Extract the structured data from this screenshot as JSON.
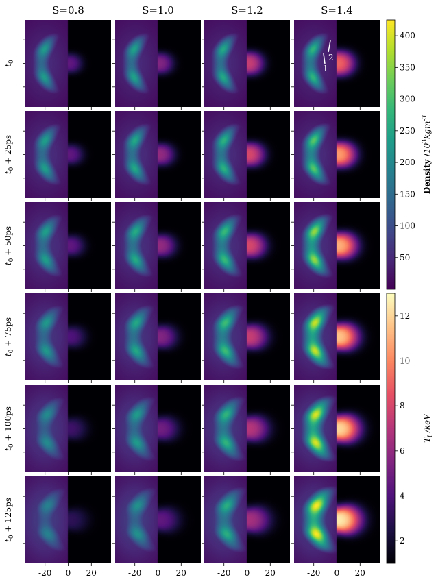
{
  "chart_data": {
    "type": "heatmap",
    "title": "",
    "columns": [
      "S=0.8",
      "S=1.0",
      "S=1.2",
      "S=1.4"
    ],
    "rows": [
      "t_0",
      "t_0+25ps",
      "t_0+50ps",
      "t_0+75ps",
      "t_0+100ps",
      "t_0+125ps"
    ],
    "row_labels": [
      {
        "base": "t",
        "sub": "0",
        "suffix": ""
      },
      {
        "base": "t",
        "sub": "0",
        "suffix": " + 25ps"
      },
      {
        "base": "t",
        "sub": "0",
        "suffix": " + 50ps"
      },
      {
        "base": "t",
        "sub": "0",
        "suffix": " + 75ps"
      },
      {
        "base": "t",
        "sub": "0",
        "suffix": " + 100ps"
      },
      {
        "base": "t",
        "sub": "0",
        "suffix": " + 125ps"
      }
    ],
    "x_ticks": [
      "-20",
      "0",
      "20"
    ],
    "x_tick_values": [
      -20,
      0,
      20
    ],
    "x_range": [
      -37,
      37
    ],
    "y_tick_values": [
      -20,
      0,
      20
    ],
    "y_range": [
      -37,
      37
    ],
    "left_half_field": "Density",
    "right_half_field": "T_i",
    "annotations": [
      {
        "panel": "S=1.4 / t_0",
        "label": "1"
      },
      {
        "panel": "S=1.4 / t_0",
        "label": "2"
      }
    ],
    "colorbars": [
      {
        "name": "density",
        "colormap": "viridis",
        "label_parts": [
          "Density /",
          "10",
          "3",
          "kgm",
          "-3"
        ],
        "ticks": [
          "50",
          "100",
          "150",
          "200",
          "250",
          "300",
          "350",
          "400"
        ],
        "tick_values": [
          50,
          100,
          150,
          200,
          250,
          300,
          350,
          400
        ],
        "range": [
          0,
          425
        ]
      },
      {
        "name": "ion-temperature",
        "colormap": "magma",
        "label_parts": [
          "T",
          "i",
          " /keV"
        ],
        "ticks": [
          "2",
          "4",
          "6",
          "8",
          "10",
          "12"
        ],
        "tick_values": [
          2,
          4,
          6,
          8,
          10,
          12
        ],
        "range": [
          1,
          13
        ]
      }
    ],
    "field_params": {
      "S_values": [
        0.8,
        1.0,
        1.2,
        1.4
      ],
      "time_ps": [
        0,
        25,
        50,
        75,
        100,
        125
      ],
      "shell_peak_density": [
        [
          205,
          215,
          225,
          245
        ],
        [
          210,
          225,
          240,
          280
        ],
        [
          210,
          230,
          255,
          320
        ],
        [
          200,
          225,
          260,
          350
        ],
        [
          180,
          205,
          245,
          360
        ],
        [
          165,
          190,
          235,
          380
        ]
      ],
      "hotspot_peak_ti": [
        [
          4.5,
          5.5,
          7.5,
          9.0
        ],
        [
          4.5,
          6.0,
          8.0,
          10.5
        ],
        [
          4.5,
          6.0,
          8.0,
          11.0
        ],
        [
          4.0,
          5.5,
          7.5,
          11.5
        ],
        [
          3.5,
          5.0,
          7.0,
          12.0
        ],
        [
          3.0,
          4.5,
          6.5,
          12.5
        ]
      ]
    }
  }
}
